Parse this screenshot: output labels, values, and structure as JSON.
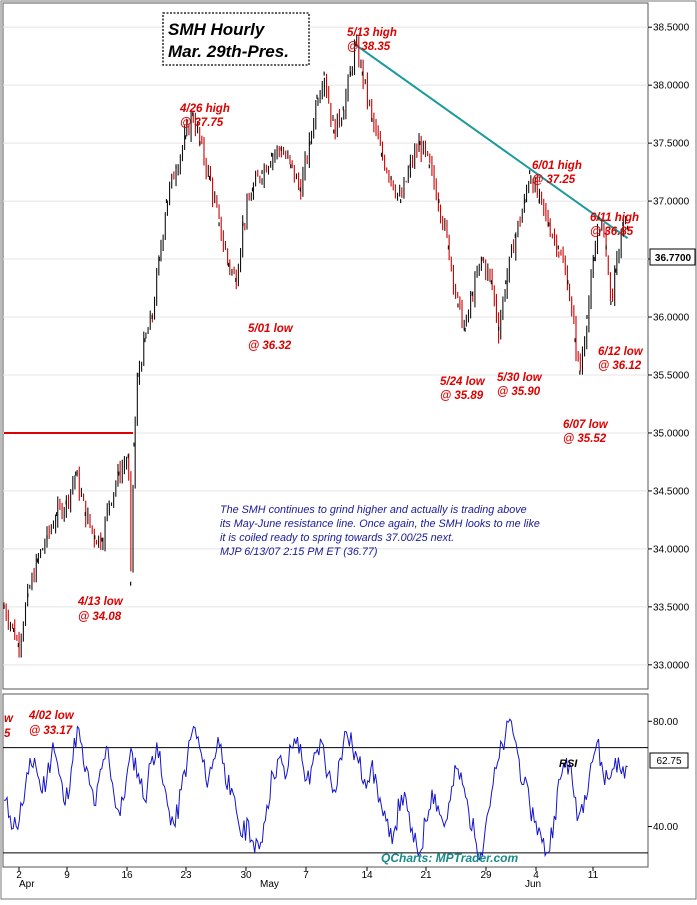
{
  "chart_data": {
    "type": "line",
    "title_lines": [
      "SMH Hourly",
      "Mar. 29th-Pres."
    ],
    "last_price_label": "36.7700",
    "x_ticks": [
      "2",
      "9",
      "16",
      "23",
      "30",
      "7",
      "14",
      "21",
      "29",
      "4",
      "11"
    ],
    "month_labels": [
      "Apr",
      "May",
      "Jun"
    ],
    "price_axis": {
      "ylim": [
        32.8,
        38.7
      ],
      "ticks": [
        "33.0000",
        "33.5000",
        "34.0000",
        "34.5000",
        "35.0000",
        "35.5000",
        "36.0000",
        "36.5000",
        "37.0000",
        "37.5000",
        "38.0000",
        "38.5000"
      ]
    },
    "price_series": {
      "name": "SMH",
      "points": [
        [
          0,
          33.5
        ],
        [
          2,
          33.3
        ],
        [
          3,
          33.17
        ],
        [
          5,
          33.6
        ],
        [
          7,
          33.9
        ],
        [
          9,
          34.1
        ],
        [
          11,
          34.3
        ],
        [
          13,
          34.4
        ],
        [
          15,
          34.65
        ],
        [
          17,
          34.3
        ],
        [
          19,
          34.1
        ],
        [
          20.5,
          34.08
        ],
        [
          22,
          34.4
        ],
        [
          24,
          34.65
        ],
        [
          26,
          34.8
        ],
        [
          26.5,
          33.7
        ],
        [
          27.2,
          34.9
        ],
        [
          28,
          35.5
        ],
        [
          29.5,
          35.8
        ],
        [
          31,
          36.0
        ],
        [
          32.5,
          36.5
        ],
        [
          34,
          37.0
        ],
        [
          36,
          37.3
        ],
        [
          38,
          37.55
        ],
        [
          39.5,
          37.75
        ],
        [
          41,
          37.5
        ],
        [
          43,
          37.2
        ],
        [
          45,
          36.8
        ],
        [
          47,
          36.45
        ],
        [
          48.5,
          36.32
        ],
        [
          50,
          36.8
        ],
        [
          52,
          37.1
        ],
        [
          54,
          37.25
        ],
        [
          56,
          37.4
        ],
        [
          58,
          37.45
        ],
        [
          60,
          37.3
        ],
        [
          62,
          37.1
        ],
        [
          64,
          37.5
        ],
        [
          65.5,
          37.9
        ],
        [
          67,
          38.1
        ],
        [
          69,
          37.6
        ],
        [
          71,
          37.8
        ],
        [
          72.5,
          38.1
        ],
        [
          73.5,
          38.35
        ],
        [
          75,
          38.1
        ],
        [
          77,
          37.7
        ],
        [
          79,
          37.4
        ],
        [
          81,
          37.2
        ],
        [
          83,
          37.0
        ],
        [
          85,
          37.3
        ],
        [
          87,
          37.5
        ],
        [
          89,
          37.3
        ],
        [
          91,
          37.0
        ],
        [
          93,
          36.6
        ],
        [
          95,
          36.1
        ],
        [
          96.5,
          35.89
        ],
        [
          98,
          36.2
        ],
        [
          100,
          36.5
        ],
        [
          102,
          36.3
        ],
        [
          103.5,
          35.9
        ],
        [
          105,
          36.3
        ],
        [
          107,
          36.7
        ],
        [
          109,
          37.0
        ],
        [
          110,
          37.25
        ],
        [
          112,
          37.0
        ],
        [
          114,
          36.8
        ],
        [
          116,
          36.6
        ],
        [
          118,
          36.3
        ],
        [
          119.5,
          35.8
        ],
        [
          120.5,
          35.52
        ],
        [
          122,
          36.0
        ],
        [
          123.5,
          36.5
        ],
        [
          124.5,
          36.85
        ],
        [
          126,
          36.6
        ],
        [
          127,
          36.12
        ],
        [
          128,
          36.4
        ],
        [
          129.5,
          36.8
        ],
        [
          130.5,
          36.77
        ]
      ]
    },
    "reference_line": {
      "price": 35.0,
      "x_range": [
        0,
        27
      ]
    },
    "trend_line": {
      "from": [
        73.5,
        38.35
      ],
      "to": [
        130.5,
        36.68
      ]
    },
    "annotations": [
      {
        "text": [
          "5/13 high",
          "@ 38.35"
        ]
      },
      {
        "text": [
          "4/26 high",
          "@ 37.75"
        ]
      },
      {
        "text": [
          "6/01 high",
          "@ 37.25"
        ]
      },
      {
        "text": [
          "6/11 high",
          "@ 36.85"
        ]
      },
      {
        "text": [
          "5/01 low",
          "@ 36.32"
        ]
      },
      {
        "text": [
          "5/24 low",
          "@ 35.89"
        ]
      },
      {
        "text": [
          "5/30 low",
          "@ 35.90"
        ]
      },
      {
        "text": [
          "6/12 low",
          "@ 36.12"
        ]
      },
      {
        "text": [
          "6/07 low",
          "@ 35.52"
        ]
      },
      {
        "text": [
          "4/13 low",
          "@ 34.08"
        ]
      },
      {
        "text": [
          "4/02 low",
          "@ 33.17"
        ]
      }
    ],
    "left_edge_marks": [
      "w",
      "5"
    ],
    "commentary_lines": [
      "The SMH continues to grind higher and actually is trading above",
      "its May-June resistance line. Once again, the SMH looks to me like",
      "it is coiled ready to spring towards 37.00/25 next.",
      "MJP 6/13/07 2:15 PM ET (36.77)"
    ],
    "rsi": {
      "label": "RSI",
      "last_value_label": "62.75",
      "ylim": [
        25,
        90
      ],
      "levels": [
        70,
        30
      ],
      "ticks": [
        "80.00",
        "40.00"
      ],
      "values": [
        50,
        44,
        40,
        48,
        60,
        66,
        54,
        58,
        72,
        60,
        48,
        62,
        78,
        64,
        56,
        48,
        62,
        70,
        52,
        44,
        58,
        68,
        60,
        50,
        64,
        72,
        56,
        46,
        40,
        54,
        66,
        78,
        70,
        58,
        62,
        74,
        64,
        52,
        46,
        36,
        42,
        30,
        34,
        48,
        60,
        66,
        58,
        70,
        74,
        62,
        56,
        68,
        72,
        60,
        54,
        66,
        76,
        70,
        64,
        58,
        62,
        56,
        44,
        36,
        40,
        52,
        46,
        34,
        30,
        42,
        54,
        48,
        40,
        50,
        62,
        56,
        46,
        36,
        30,
        44,
        56,
        66,
        74,
        80,
        68,
        56,
        48,
        42,
        34,
        30,
        44,
        58,
        66,
        56,
        44,
        52,
        64,
        72,
        60,
        58,
        66,
        60,
        62.75
      ]
    },
    "watermark": "QCharts: MPTrader.com"
  }
}
